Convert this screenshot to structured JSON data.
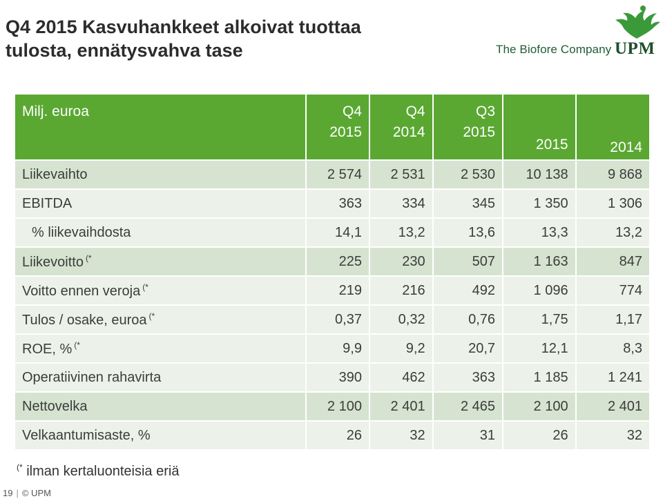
{
  "header": {
    "title_line1": "Q4 2015 Kasvuhankkeet alkoivat tuottaa",
    "title_line2": "tulosta, ennätysvahva tase",
    "tagline": "The Biofore Company",
    "logo_text": "UPM"
  },
  "table": {
    "unit_label": "Milj. euroa",
    "columns": [
      {
        "line1": "Q4",
        "line2": "2015"
      },
      {
        "line1": "Q4",
        "line2": "2014"
      },
      {
        "line1": "Q3",
        "line2": "2015"
      },
      {
        "line1": "",
        "line2": "2015"
      },
      {
        "line1": "",
        "line2": "2014"
      }
    ],
    "rows": [
      {
        "label": "Liikevaihto",
        "note": "",
        "values": [
          "2 574",
          "2 531",
          "2 530",
          "10 138",
          "9 868"
        ]
      },
      {
        "label": "EBITDA",
        "note": "",
        "values": [
          "363",
          "334",
          "345",
          "1 350",
          "1 306"
        ]
      },
      {
        "label": "% liikevaihdosta",
        "note": "",
        "values": [
          "14,1",
          "13,2",
          "13,6",
          "13,3",
          "13,2"
        ]
      },
      {
        "label": "Liikevoitto",
        "note": "(*",
        "values": [
          "225",
          "230",
          "507",
          "1 163",
          "847"
        ]
      },
      {
        "label": "Voitto ennen veroja",
        "note": "(*",
        "values": [
          "219",
          "216",
          "492",
          "1 096",
          "774"
        ]
      },
      {
        "label": "Tulos / osake, euroa",
        "note": "(*",
        "values": [
          "0,37",
          "0,32",
          "0,76",
          "1,75",
          "1,17"
        ]
      },
      {
        "label": "ROE, %",
        "note": "(*",
        "values": [
          "9,9",
          "9,2",
          "20,7",
          "12,1",
          "8,3"
        ]
      },
      {
        "label": "Operatiivinen rahavirta",
        "note": "",
        "values": [
          "390",
          "462",
          "363",
          "1 185",
          "1 241"
        ]
      },
      {
        "label": "Nettovelka",
        "note": "",
        "values": [
          "2 100",
          "2 401",
          "2 465",
          "2 100",
          "2 401"
        ]
      },
      {
        "label": "Velkaantumisaste, %",
        "note": "",
        "values": [
          "26",
          "32",
          "31",
          "26",
          "32"
        ]
      }
    ]
  },
  "footnote": {
    "marker": "(*",
    "text": "ilman kertaluonteisia eriä"
  },
  "footer": {
    "page_number": "19",
    "copyright": "© UPM"
  },
  "colors": {
    "header_green": "#5aa832",
    "row_shade": "#d6e3d0",
    "row_light": "#ecf2e9",
    "brand_dark_green": "#1f4f2d"
  }
}
